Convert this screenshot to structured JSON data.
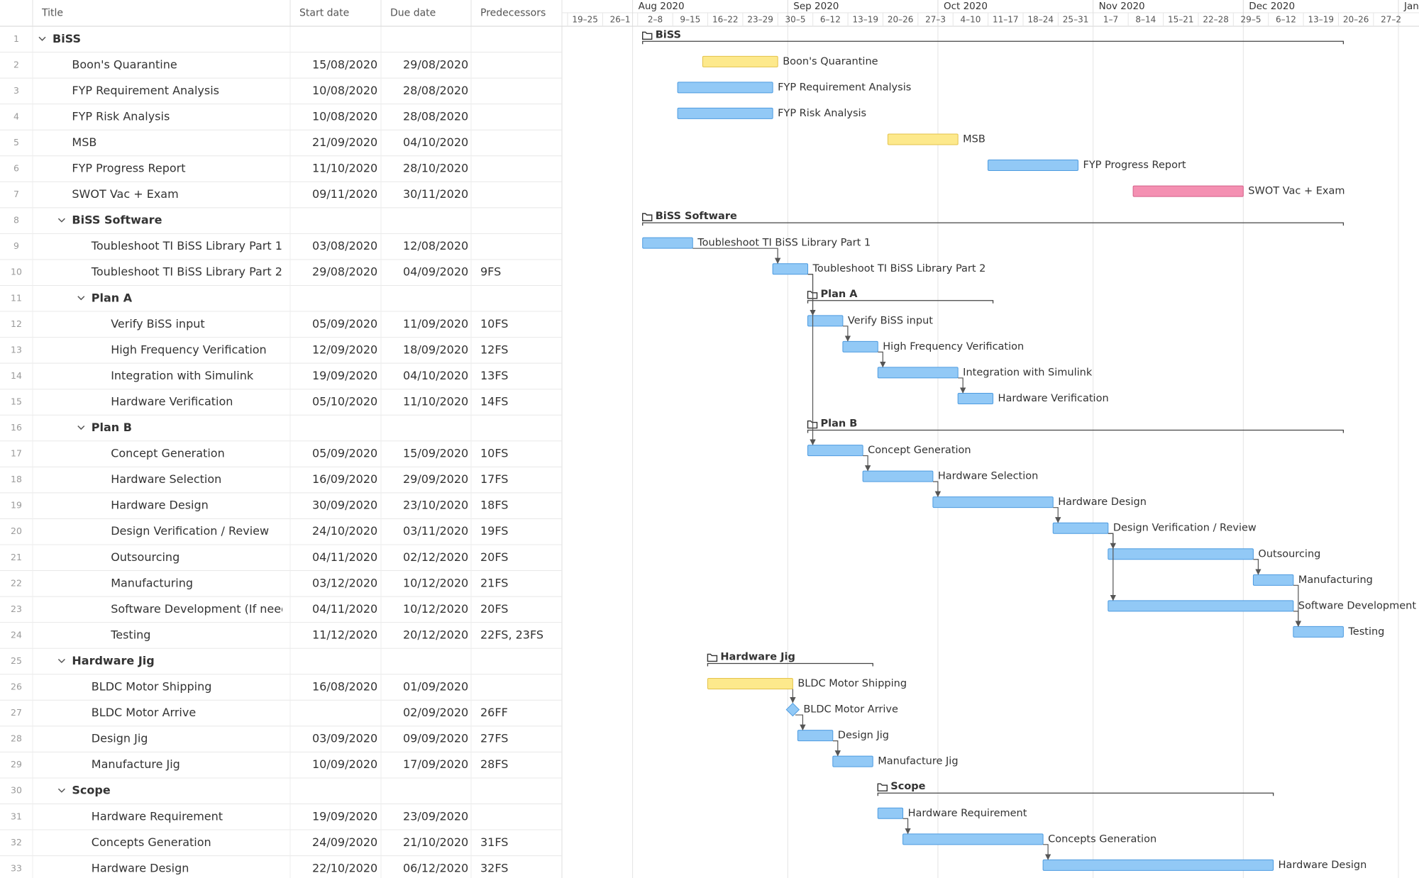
{
  "table": {
    "columns": [
      "Title",
      "Start date",
      "Due date",
      "Predecessors"
    ],
    "rows": [
      {
        "id": 1,
        "title": "BiSS",
        "level": 0,
        "group": true
      },
      {
        "id": 2,
        "title": "Boon's Quarantine",
        "level": 1,
        "start": "15/08/2020",
        "due": "29/08/2020",
        "color": "yellow"
      },
      {
        "id": 3,
        "title": "FYP Requirement Analysis",
        "level": 1,
        "start": "10/08/2020",
        "due": "28/08/2020",
        "color": "blue"
      },
      {
        "id": 4,
        "title": "FYP Risk Analysis",
        "level": 1,
        "start": "10/08/2020",
        "due": "28/08/2020",
        "color": "blue"
      },
      {
        "id": 5,
        "title": "MSB",
        "level": 1,
        "start": "21/09/2020",
        "due": "04/10/2020",
        "color": "yellow"
      },
      {
        "id": 6,
        "title": "FYP Progress Report",
        "level": 1,
        "start": "11/10/2020",
        "due": "28/10/2020",
        "color": "blue"
      },
      {
        "id": 7,
        "title": "SWOT Vac + Exam",
        "level": 1,
        "start": "09/11/2020",
        "due": "30/11/2020",
        "color": "pink"
      },
      {
        "id": 8,
        "title": "BiSS Software",
        "level": 1,
        "group": true
      },
      {
        "id": 9,
        "title": "Toubleshoot TI BiSS Library Part 1",
        "level": 2,
        "start": "03/08/2020",
        "due": "12/08/2020",
        "color": "blue"
      },
      {
        "id": 10,
        "title": "Toubleshoot TI BiSS Library Part 2",
        "level": 2,
        "start": "29/08/2020",
        "due": "04/09/2020",
        "predecessors": "9FS",
        "color": "blue"
      },
      {
        "id": 11,
        "title": "Plan A",
        "level": 2,
        "group": true
      },
      {
        "id": 12,
        "title": "Verify BiSS input",
        "level": 3,
        "start": "05/09/2020",
        "due": "11/09/2020",
        "predecessors": "10FS",
        "color": "blue"
      },
      {
        "id": 13,
        "title": "High Frequency Verification",
        "level": 3,
        "start": "12/09/2020",
        "due": "18/09/2020",
        "predecessors": "12FS",
        "color": "blue"
      },
      {
        "id": 14,
        "title": "Integration with Simulink",
        "level": 3,
        "start": "19/09/2020",
        "due": "04/10/2020",
        "predecessors": "13FS",
        "color": "blue"
      },
      {
        "id": 15,
        "title": "Hardware Verification",
        "level": 3,
        "start": "05/10/2020",
        "due": "11/10/2020",
        "predecessors": "14FS",
        "color": "blue"
      },
      {
        "id": 16,
        "title": "Plan B",
        "level": 2,
        "group": true
      },
      {
        "id": 17,
        "title": "Concept Generation",
        "level": 3,
        "start": "05/09/2020",
        "due": "15/09/2020",
        "predecessors": "10FS",
        "color": "blue"
      },
      {
        "id": 18,
        "title": "Hardware Selection",
        "level": 3,
        "start": "16/09/2020",
        "due": "29/09/2020",
        "predecessors": "17FS",
        "color": "blue"
      },
      {
        "id": 19,
        "title": "Hardware Design",
        "level": 3,
        "start": "30/09/2020",
        "due": "23/10/2020",
        "predecessors": "18FS",
        "color": "blue"
      },
      {
        "id": 20,
        "title": "Design Verification / Review",
        "level": 3,
        "start": "24/10/2020",
        "due": "03/11/2020",
        "predecessors": "19FS",
        "color": "blue"
      },
      {
        "id": 21,
        "title": "Outsourcing",
        "level": 3,
        "start": "04/11/2020",
        "due": "02/12/2020",
        "predecessors": "20FS",
        "color": "blue"
      },
      {
        "id": 22,
        "title": "Manufacturing",
        "level": 3,
        "start": "03/12/2020",
        "due": "10/12/2020",
        "predecessors": "21FS",
        "color": "blue"
      },
      {
        "id": 23,
        "title": "Software Development (If needed)",
        "level": 3,
        "start": "04/11/2020",
        "due": "10/12/2020",
        "predecessors": "20FS",
        "color": "blue"
      },
      {
        "id": 24,
        "title": "Testing",
        "level": 3,
        "start": "11/12/2020",
        "due": "20/12/2020",
        "predecessors": "22FS, 23FS",
        "color": "blue"
      },
      {
        "id": 25,
        "title": "Hardware Jig",
        "level": 1,
        "group": true
      },
      {
        "id": 26,
        "title": "BLDC Motor Shipping",
        "level": 2,
        "start": "16/08/2020",
        "due": "01/09/2020",
        "color": "yellow"
      },
      {
        "id": 27,
        "title": "BLDC Motor Arrive",
        "level": 2,
        "due": "02/09/2020",
        "predecessors": "26FF",
        "color": "blue"
      },
      {
        "id": 28,
        "title": "Design Jig",
        "level": 2,
        "start": "03/09/2020",
        "due": "09/09/2020",
        "predecessors": "27FS",
        "color": "blue"
      },
      {
        "id": 29,
        "title": "Manufacture Jig",
        "level": 2,
        "start": "10/09/2020",
        "due": "17/09/2020",
        "predecessors": "28FS",
        "color": "blue"
      },
      {
        "id": 30,
        "title": "Scope",
        "level": 1,
        "group": true
      },
      {
        "id": 31,
        "title": "Hardware Requirement",
        "level": 2,
        "start": "19/09/2020",
        "due": "23/09/2020",
        "color": "blue"
      },
      {
        "id": 32,
        "title": "Concepts Generation",
        "level": 2,
        "start": "24/09/2020",
        "due": "21/10/2020",
        "predecessors": "31FS",
        "color": "blue"
      },
      {
        "id": 33,
        "title": "Hardware Design",
        "level": 2,
        "start": "22/10/2020",
        "due": "06/12/2020",
        "predecessors": "32FS",
        "color": "blue"
      }
    ]
  },
  "timeline": {
    "months": [
      "Aug 2020",
      "Sep 2020",
      "Oct 2020",
      "Nov 2020",
      "Dec 2020",
      "Jan"
    ],
    "weeks": [
      "19–25",
      "26–1",
      "2–8",
      "9–15",
      "16–22",
      "23–29",
      "30–5",
      "6–12",
      "13–19",
      "20–26",
      "27–3",
      "4–10",
      "11–17",
      "18–24",
      "25–31",
      "1–7",
      "8–14",
      "15–21",
      "22–28",
      "29–5",
      "6–12",
      "13–19",
      "20–26",
      "27–2"
    ]
  }
}
